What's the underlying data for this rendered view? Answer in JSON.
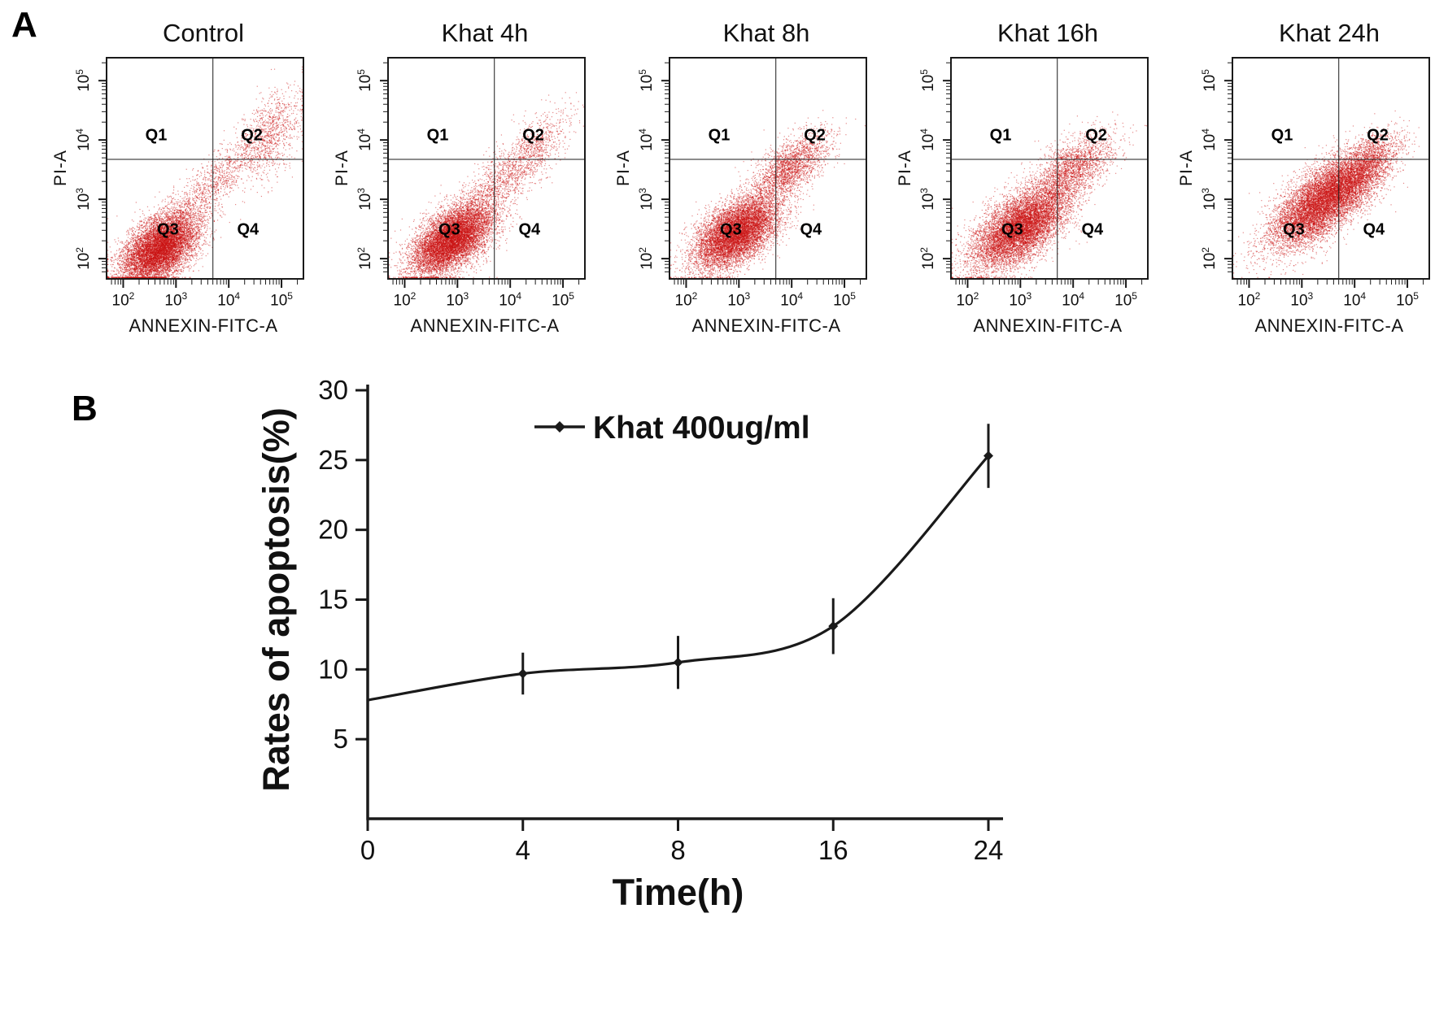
{
  "panel_labels": {
    "a": "A",
    "b": "B"
  },
  "chart_data": [
    {
      "type": "scatter",
      "panel": "A",
      "subtype": "flow-cytometry-dot-plot",
      "xlabel": "ANNEXIN-FITC-A",
      "ylabel": "PI-A",
      "x_scale": "log10",
      "y_scale": "log10",
      "x_range_log10": [
        1.7,
        5.4
      ],
      "y_range_log10": [
        1.7,
        5.4
      ],
      "tick_exponents": [
        2,
        3,
        4,
        5
      ],
      "quadrant_labels": [
        "Q1",
        "Q2",
        "Q3",
        "Q4"
      ],
      "gate_log10": {
        "x": 3.7,
        "y": 3.7
      },
      "point_color": "#cc1212",
      "plots": [
        {
          "title": "Control",
          "clusters": [
            {
              "n": 9000,
              "cx": 2.7,
              "cy": 2.2,
              "sx": 0.36,
              "sy": 0.3,
              "rho": 0.5
            },
            {
              "n": 1200,
              "cx": 3.7,
              "cy": 3.3,
              "sx": 0.6,
              "sy": 0.55,
              "rho": 0.9
            },
            {
              "n": 900,
              "cx": 4.8,
              "cy": 4.1,
              "sx": 0.28,
              "sy": 0.38,
              "rho": 0.4
            }
          ]
        },
        {
          "title": "Khat 4h",
          "clusters": [
            {
              "n": 9000,
              "cx": 2.9,
              "cy": 2.35,
              "sx": 0.38,
              "sy": 0.3,
              "rho": 0.55
            },
            {
              "n": 1500,
              "cx": 3.85,
              "cy": 3.35,
              "sx": 0.55,
              "sy": 0.5,
              "rho": 0.85
            },
            {
              "n": 400,
              "cx": 4.5,
              "cy": 3.9,
              "sx": 0.3,
              "sy": 0.3,
              "rho": 0.5
            }
          ]
        },
        {
          "title": "Khat 8h",
          "clusters": [
            {
              "n": 8500,
              "cx": 2.95,
              "cy": 2.45,
              "sx": 0.4,
              "sy": 0.3,
              "rho": 0.55
            },
            {
              "n": 1800,
              "cx": 4.0,
              "cy": 3.6,
              "sx": 0.35,
              "sy": 0.28,
              "rho": 0.6
            },
            {
              "n": 700,
              "cx": 3.5,
              "cy": 3.1,
              "sx": 0.55,
              "sy": 0.45,
              "rho": 0.85
            }
          ]
        },
        {
          "title": "Khat 16h",
          "clusters": [
            {
              "n": 9000,
              "cx": 3.0,
              "cy": 2.55,
              "sx": 0.45,
              "sy": 0.35,
              "rho": 0.6
            },
            {
              "n": 2100,
              "cx": 4.0,
              "cy": 3.55,
              "sx": 0.38,
              "sy": 0.3,
              "rho": 0.6
            }
          ]
        },
        {
          "title": "Khat 24h",
          "clusters": [
            {
              "n": 9500,
              "cx": 3.4,
              "cy": 3.0,
              "sx": 0.5,
              "sy": 0.4,
              "rho": 0.7
            },
            {
              "n": 2300,
              "cx": 4.15,
              "cy": 3.5,
              "sx": 0.35,
              "sy": 0.3,
              "rho": 0.6
            }
          ]
        }
      ]
    },
    {
      "type": "line",
      "panel": "B",
      "legend": "Khat 400ug/ml",
      "xlabel": "Time(h)",
      "ylabel": "Rates of apoptosis(%)",
      "x": [
        0,
        4,
        8,
        16,
        24
      ],
      "x_axis": "categorical-equal-spacing",
      "values": [
        7.8,
        9.7,
        10.5,
        13.1,
        25.3
      ],
      "errors": [
        0,
        1.5,
        1.9,
        2.0,
        2.3
      ],
      "ylim": [
        0,
        30
      ],
      "yticks": [
        5,
        10,
        15,
        20,
        25,
        30
      ],
      "line_color": "#1a1a1a",
      "marker": "diamond",
      "legend_position": "top-center",
      "grid": false
    }
  ]
}
